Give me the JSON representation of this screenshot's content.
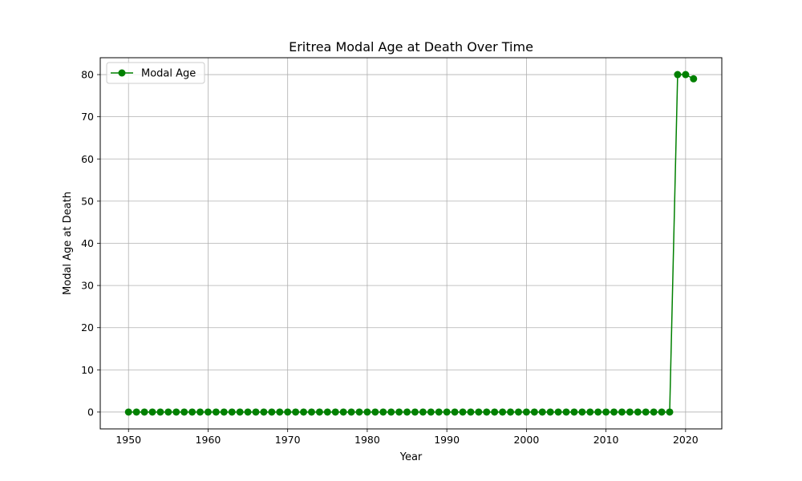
{
  "chart_data": {
    "type": "line",
    "title": "Eritrea Modal Age at Death Over Time",
    "xlabel": "Year",
    "ylabel": "Modal Age at Death",
    "xlim": [
      1946.45,
      2024.55
    ],
    "ylim": [
      -4.0,
      84.0
    ],
    "xticks": [
      1950,
      1960,
      1970,
      1980,
      1990,
      2000,
      2010,
      2020
    ],
    "yticks": [
      0,
      10,
      20,
      30,
      40,
      50,
      60,
      70,
      80
    ],
    "grid": true,
    "legend_position": "upper-left",
    "series": [
      {
        "name": "Modal Age",
        "color": "#008000",
        "marker": "circle",
        "x": [
          1950,
          1951,
          1952,
          1953,
          1954,
          1955,
          1956,
          1957,
          1958,
          1959,
          1960,
          1961,
          1962,
          1963,
          1964,
          1965,
          1966,
          1967,
          1968,
          1969,
          1970,
          1971,
          1972,
          1973,
          1974,
          1975,
          1976,
          1977,
          1978,
          1979,
          1980,
          1981,
          1982,
          1983,
          1984,
          1985,
          1986,
          1987,
          1988,
          1989,
          1990,
          1991,
          1992,
          1993,
          1994,
          1995,
          1996,
          1997,
          1998,
          1999,
          2000,
          2001,
          2002,
          2003,
          2004,
          2005,
          2006,
          2007,
          2008,
          2009,
          2010,
          2011,
          2012,
          2013,
          2014,
          2015,
          2016,
          2017,
          2018,
          2019,
          2020,
          2021
        ],
        "y": [
          0,
          0,
          0,
          0,
          0,
          0,
          0,
          0,
          0,
          0,
          0,
          0,
          0,
          0,
          0,
          0,
          0,
          0,
          0,
          0,
          0,
          0,
          0,
          0,
          0,
          0,
          0,
          0,
          0,
          0,
          0,
          0,
          0,
          0,
          0,
          0,
          0,
          0,
          0,
          0,
          0,
          0,
          0,
          0,
          0,
          0,
          0,
          0,
          0,
          0,
          0,
          0,
          0,
          0,
          0,
          0,
          0,
          0,
          0,
          0,
          0,
          0,
          0,
          0,
          0,
          0,
          0,
          0,
          0,
          80,
          80,
          79
        ]
      }
    ]
  }
}
